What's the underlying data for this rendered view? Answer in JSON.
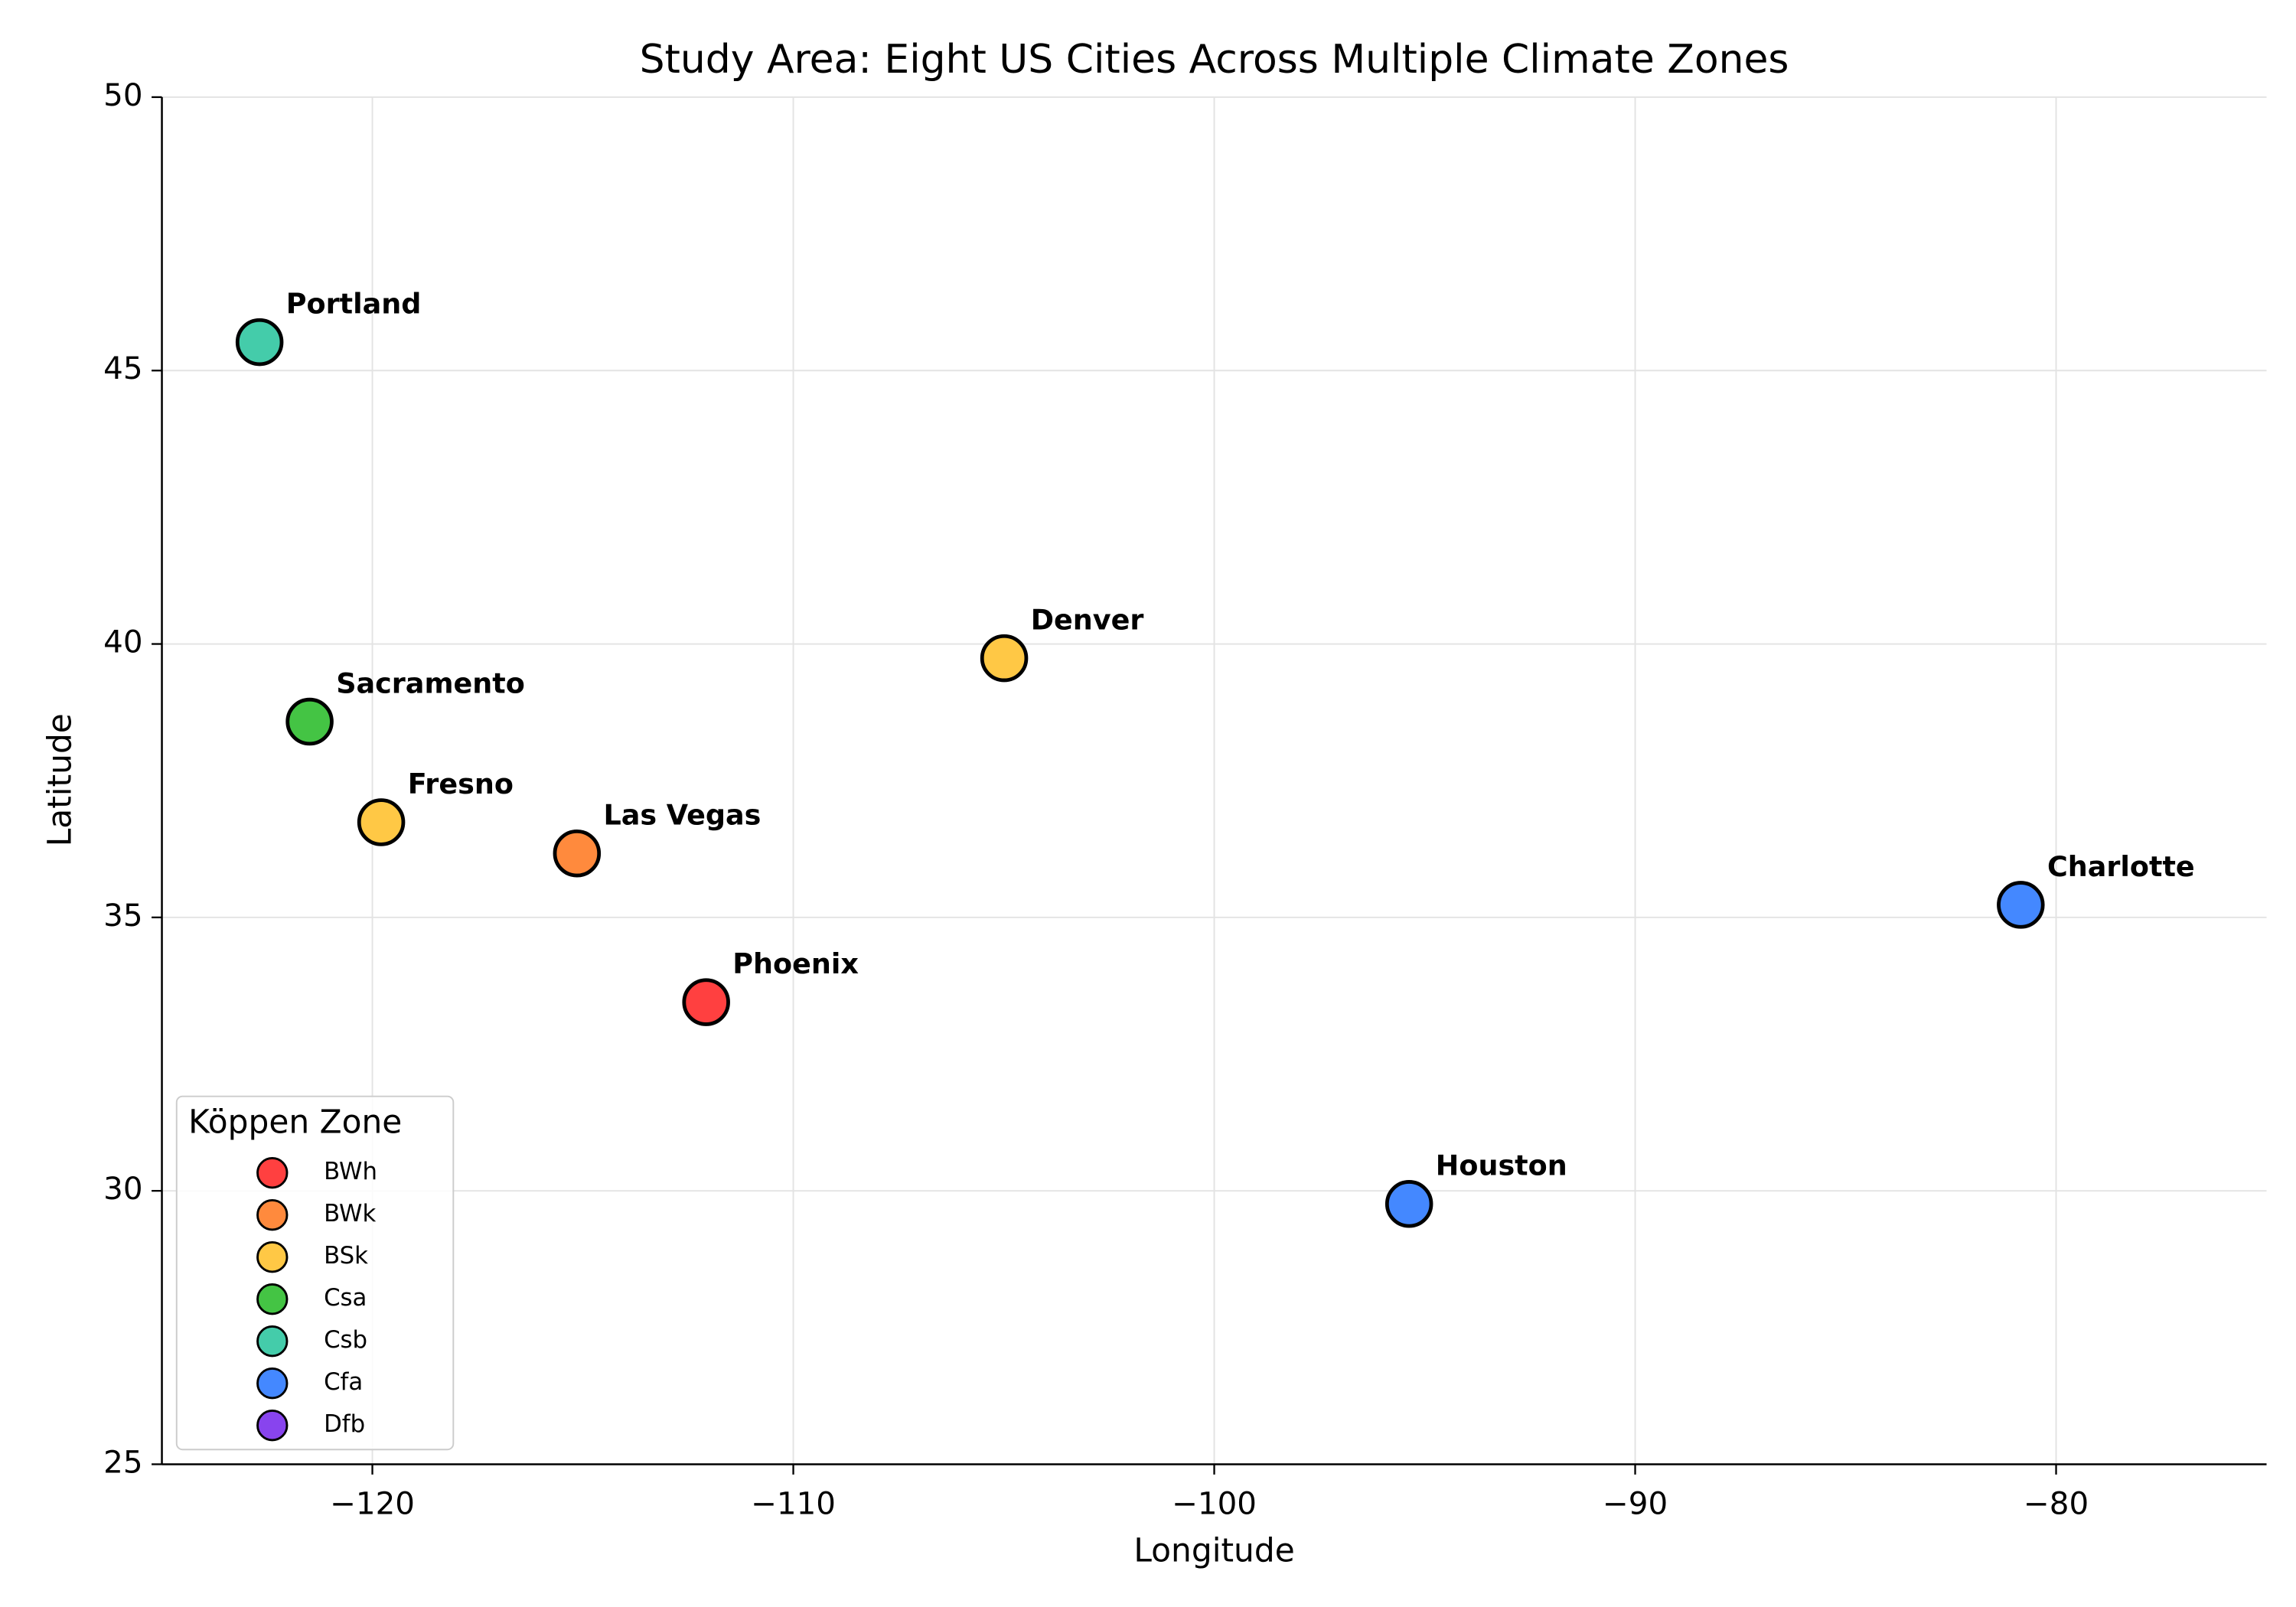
{
  "chart_data": {
    "type": "scatter",
    "title": "Study Area: Eight US Cities Across Multiple Climate Zones",
    "xlabel": "Longitude",
    "ylabel": "Latitude",
    "xlim": [
      -125,
      -75
    ],
    "ylim": [
      25,
      50
    ],
    "xticks": [
      {
        "value": -120,
        "label": "−120"
      },
      {
        "value": -110,
        "label": "−110"
      },
      {
        "value": -100,
        "label": "−100"
      },
      {
        "value": -90,
        "label": "−90"
      },
      {
        "value": -80,
        "label": "−80"
      }
    ],
    "yticks": [
      25,
      30,
      35,
      40,
      45,
      50
    ],
    "grid": true,
    "legend_title": "Köppen Zone",
    "legend_position": "lower left",
    "series": [
      {
        "name": "BWh",
        "color": "#ff4040",
        "x": [
          -112.07
        ],
        "values": [
          33.45
        ],
        "labels": [
          "Phoenix"
        ]
      },
      {
        "name": "BWk",
        "color": "#ff8a3d",
        "x": [
          -115.14
        ],
        "values": [
          36.17
        ],
        "labels": [
          "Las Vegas"
        ]
      },
      {
        "name": "BSk",
        "color": "#ffc845",
        "x": [
          -119.79,
          -104.99
        ],
        "values": [
          36.74,
          39.74
        ],
        "labels": [
          "Fresno",
          "Denver"
        ]
      },
      {
        "name": "Csa",
        "color": "#44c444",
        "x": [
          -121.49
        ],
        "values": [
          38.58
        ],
        "labels": [
          "Sacramento"
        ]
      },
      {
        "name": "Csb",
        "color": "#44ccaa",
        "x": [
          -122.68
        ],
        "values": [
          45.52
        ],
        "labels": [
          "Portland"
        ]
      },
      {
        "name": "Cfa",
        "color": "#4488ff",
        "x": [
          -95.37,
          -80.84
        ],
        "values": [
          29.76,
          35.23
        ],
        "labels": [
          "Houston",
          "Charlotte"
        ]
      },
      {
        "name": "Dfb",
        "color": "#8844ee",
        "x": [],
        "values": [],
        "labels": []
      }
    ]
  }
}
